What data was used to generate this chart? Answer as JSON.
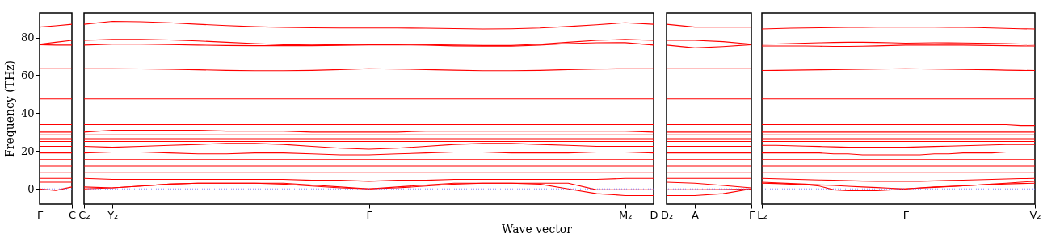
{
  "chart_data": [
    {
      "type": "line",
      "ylabel": "Frequency (THz)",
      "categories": [
        "Γ",
        null,
        "C"
      ],
      "ylim": [
        -8,
        93
      ],
      "yticks": [
        0,
        20,
        40,
        60,
        80
      ],
      "ref_lines": [
        {
          "axis": "y",
          "value": 0,
          "color": "#6666ff",
          "line_style": "dotted"
        }
      ],
      "series": [
        {
          "color": "#ff0000",
          "values": [
            85.5,
            86.2,
            87
          ]
        },
        {
          "color": "#ff0000",
          "values": [
            76.5,
            77.5,
            78.5
          ]
        },
        {
          "color": "#ff0000",
          "values": [
            76.2,
            76,
            76
          ]
        },
        {
          "color": "#ff0000",
          "values": [
            63.5,
            63.5,
            63.5
          ]
        },
        {
          "color": "#ff0000",
          "values": [
            47.5,
            47.5,
            47.5
          ]
        },
        {
          "color": "#ff0000",
          "values": [
            34,
            34,
            34
          ]
        },
        {
          "color": "#ff0000",
          "values": [
            30,
            30,
            30
          ]
        },
        {
          "color": "#ff0000",
          "values": [
            28.5,
            28.5,
            28.5
          ]
        },
        {
          "color": "#ff0000",
          "values": [
            26.5,
            26.5,
            26.5
          ]
        },
        {
          "color": "#ff0000",
          "values": [
            25,
            25,
            25
          ]
        },
        {
          "color": "#ff0000",
          "values": [
            22.5,
            22.5,
            22.5
          ]
        },
        {
          "color": "#ff0000",
          "values": [
            19,
            19,
            19
          ]
        },
        {
          "color": "#ff0000",
          "values": [
            15.5,
            15.5,
            15.5
          ]
        },
        {
          "color": "#ff0000",
          "values": [
            12,
            12,
            12
          ]
        },
        {
          "color": "#ff0000",
          "values": [
            8.5,
            8.5,
            8.5
          ]
        },
        {
          "color": "#ff0000",
          "values": [
            5.5,
            5.5,
            5.5
          ]
        },
        {
          "color": "#ff0000",
          "values": [
            3.5,
            3.5,
            3.5
          ]
        },
        {
          "color": "#ff0000",
          "values": [
            0,
            -0.8,
            1
          ]
        }
      ]
    },
    {
      "type": "line",
      "xlabel": "Wave vector",
      "categories": [
        "C₂",
        "Y₂",
        null,
        null,
        null,
        null,
        null,
        null,
        null,
        null,
        "Γ",
        null,
        null,
        null,
        null,
        null,
        null,
        null,
        null,
        "M₂",
        "D"
      ],
      "ylim": [
        -8,
        93
      ],
      "yticks": [
        0,
        20,
        40,
        60,
        80
      ],
      "tick_labels": "x",
      "ref_lines": [
        {
          "axis": "y",
          "value": 0,
          "color": "#6666ff",
          "line_style": "dotted"
        }
      ],
      "series": [
        {
          "color": "#ff0000",
          "values": [
            87,
            88.5,
            88.3,
            87.8,
            87,
            86.3,
            85.7,
            85.3,
            85.1,
            85,
            85,
            85,
            84.9,
            84.7,
            84.5,
            84.6,
            85,
            85.8,
            86.7,
            87.8,
            87
          ]
        },
        {
          "color": "#ff0000",
          "values": [
            78.5,
            79,
            79,
            78.7,
            78.2,
            77.5,
            76.8,
            76.2,
            76,
            76.2,
            76.5,
            76.5,
            76.3,
            76,
            75.8,
            75.8,
            76.5,
            77.5,
            78.5,
            79,
            78.5
          ]
        },
        {
          "color": "#ff0000",
          "values": [
            76,
            76.5,
            76.5,
            76.3,
            76,
            75.8,
            75.7,
            75.7,
            75.7,
            75.9,
            76.1,
            76.1,
            76,
            75.6,
            75.4,
            75.4,
            76,
            76.8,
            77.2,
            77.3,
            76
          ]
        },
        {
          "color": "#ff0000",
          "values": [
            63.5,
            63.5,
            63.4,
            63.2,
            62.9,
            62.6,
            62.4,
            62.4,
            62.6,
            63,
            63.5,
            63.3,
            63,
            62.7,
            62.4,
            62.4,
            62.6,
            63,
            63.3,
            63.5,
            63.5
          ]
        },
        {
          "color": "#ff0000",
          "values": [
            47.5,
            47.5,
            47.5,
            47.5,
            47.5,
            47.5,
            47.5,
            47.5,
            47.5,
            47.5,
            47.5,
            47.5,
            47.5,
            47.5,
            47.5,
            47.5,
            47.5,
            47.5,
            47.5,
            47.5,
            47.5
          ]
        },
        {
          "color": "#ff0000",
          "values": [
            34,
            34,
            34,
            34,
            34,
            34,
            34,
            34,
            34,
            34,
            34,
            34,
            34,
            34,
            34,
            34,
            34,
            34,
            34,
            34,
            34
          ]
        },
        {
          "color": "#ff0000",
          "values": [
            30,
            31,
            31,
            31,
            31,
            30.5,
            30.5,
            30.5,
            30,
            30,
            30,
            30,
            30.5,
            30.5,
            30.5,
            30.5,
            30.5,
            30.5,
            30.5,
            30.5,
            30
          ]
        },
        {
          "color": "#ff0000",
          "values": [
            28.5,
            28.5,
            28.5,
            28.5,
            28.5,
            28.5,
            28.5,
            28.5,
            28.5,
            28.5,
            28.5,
            28.5,
            28.5,
            28.5,
            28.5,
            28.5,
            28.5,
            28.5,
            28.5,
            28.5,
            28.5
          ]
        },
        {
          "color": "#ff0000",
          "values": [
            26.5,
            26.5,
            26.5,
            26.5,
            26.5,
            26.5,
            26.5,
            26.5,
            26.5,
            26.5,
            26.5,
            26.5,
            26.5,
            26.5,
            26.5,
            26.5,
            26.5,
            26.5,
            26.5,
            26.5,
            26.5
          ]
        },
        {
          "color": "#ff0000",
          "values": [
            25,
            25,
            25,
            25,
            25,
            25,
            25,
            25,
            25,
            25,
            25,
            25,
            25,
            25,
            25,
            25,
            25,
            25,
            25,
            25,
            25
          ]
        },
        {
          "color": "#ff0000",
          "values": [
            22.5,
            22,
            22.5,
            23,
            23.5,
            24,
            24,
            23.5,
            22.5,
            21.5,
            21,
            21.5,
            22.5,
            23.5,
            24,
            24,
            23.5,
            23,
            22.5,
            22.5,
            22.5
          ]
        },
        {
          "color": "#ff0000",
          "values": [
            19,
            19.5,
            19.5,
            19,
            18.5,
            18.5,
            19,
            19,
            18.5,
            18,
            18,
            18.5,
            19,
            19.5,
            19.5,
            19,
            19,
            19,
            19.5,
            19.5,
            19
          ]
        },
        {
          "color": "#ff0000",
          "values": [
            15.5,
            15.5,
            15.5,
            15.5,
            15.5,
            15.5,
            15.5,
            15.5,
            15.5,
            15.5,
            15.5,
            15.5,
            15.5,
            15.5,
            15.5,
            15.5,
            15.5,
            15.5,
            15.5,
            15.5,
            15.5
          ]
        },
        {
          "color": "#ff0000",
          "values": [
            12,
            12,
            12,
            12,
            12,
            12,
            12,
            12,
            12,
            12,
            12,
            12,
            12,
            12,
            12,
            12,
            12,
            12,
            12,
            12,
            12
          ]
        },
        {
          "color": "#ff0000",
          "values": [
            8.5,
            8.5,
            8.5,
            8.5,
            8.5,
            8.5,
            8.5,
            8.5,
            8.5,
            8.5,
            8.5,
            8.5,
            8.5,
            8.5,
            8.5,
            8.5,
            8.5,
            8.5,
            8.5,
            8.5,
            8.5
          ]
        },
        {
          "color": "#ff0000",
          "values": [
            5.5,
            5,
            5,
            5,
            5,
            5,
            5,
            5,
            4.5,
            4.5,
            4,
            4.5,
            4.5,
            5,
            5,
            5,
            5,
            5,
            5,
            5.5,
            5.5
          ]
        },
        {
          "color": "#ff0000",
          "values": [
            1,
            0.5,
            1.5,
            2.5,
            3,
            3,
            3,
            3,
            2,
            1,
            0,
            1,
            2,
            3,
            3,
            3,
            2.5,
            0,
            -2.5,
            -3.5,
            -3.5
          ]
        },
        {
          "color": "#ff0000",
          "values": [
            0,
            0.5,
            1.5,
            2.5,
            3,
            3,
            3,
            2.5,
            1.5,
            0.5,
            0,
            0.5,
            1.5,
            2.5,
            3,
            3,
            3,
            3,
            -0.5,
            -0.5,
            -0.5
          ]
        }
      ]
    },
    {
      "type": "line",
      "categories": [
        "D₂",
        "A",
        null,
        "Γ"
      ],
      "ylim": [
        -8,
        93
      ],
      "yticks": [
        0,
        20,
        40,
        60,
        80
      ],
      "tick_labels": "x",
      "ref_lines": [
        {
          "axis": "y",
          "value": 0,
          "color": "#6666ff",
          "line_style": "dotted"
        }
      ],
      "series": [
        {
          "color": "#ff0000",
          "values": [
            87,
            85.5,
            85.5,
            85.5
          ]
        },
        {
          "color": "#ff0000",
          "values": [
            78.5,
            78.5,
            77.8,
            76.5
          ]
        },
        {
          "color": "#ff0000",
          "values": [
            76,
            74.5,
            75.2,
            76.2
          ]
        },
        {
          "color": "#ff0000",
          "values": [
            63.5,
            63.5,
            63.5,
            63.5
          ]
        },
        {
          "color": "#ff0000",
          "values": [
            47.5,
            47.5,
            47.5,
            47.5
          ]
        },
        {
          "color": "#ff0000",
          "values": [
            34,
            34,
            34,
            34
          ]
        },
        {
          "color": "#ff0000",
          "values": [
            30,
            30,
            30,
            30
          ]
        },
        {
          "color": "#ff0000",
          "values": [
            28.5,
            28.5,
            28.5,
            28.5
          ]
        },
        {
          "color": "#ff0000",
          "values": [
            26.5,
            26.5,
            26.5,
            26.5
          ]
        },
        {
          "color": "#ff0000",
          "values": [
            25,
            25,
            25,
            25
          ]
        },
        {
          "color": "#ff0000",
          "values": [
            22.5,
            22.5,
            22.5,
            22.5
          ]
        },
        {
          "color": "#ff0000",
          "values": [
            19,
            19,
            19,
            19
          ]
        },
        {
          "color": "#ff0000",
          "values": [
            15.5,
            15.5,
            15.5,
            15.5
          ]
        },
        {
          "color": "#ff0000",
          "values": [
            12,
            12,
            12,
            12
          ]
        },
        {
          "color": "#ff0000",
          "values": [
            8.5,
            8.5,
            8.5,
            8.5
          ]
        },
        {
          "color": "#ff0000",
          "values": [
            5.5,
            5.5,
            5.5,
            5.5
          ]
        },
        {
          "color": "#ff0000",
          "values": [
            3.5,
            3,
            1.8,
            0.5
          ]
        },
        {
          "color": "#ff0000",
          "values": [
            -0.5,
            -0.5,
            -0.3,
            0
          ]
        },
        {
          "color": "#ff0000",
          "values": [
            -3.5,
            -3.5,
            -2.5,
            0
          ]
        }
      ]
    },
    {
      "type": "line",
      "categories": [
        "L₂",
        null,
        null,
        null,
        null,
        null,
        null,
        null,
        null,
        null,
        "Γ",
        null,
        null,
        null,
        null,
        null,
        null,
        null,
        null,
        "V₂"
      ],
      "ylim": [
        -8,
        93
      ],
      "yticks": [
        0,
        20,
        40,
        60,
        80
      ],
      "tick_labels": "x",
      "ref_lines": [
        {
          "axis": "y",
          "value": 0,
          "color": "#6666ff",
          "line_style": "dotted"
        }
      ],
      "series": [
        {
          "color": "#ff0000",
          "values": [
            84.5,
            84.7,
            84.9,
            85,
            85.1,
            85.2,
            85.3,
            85.4,
            85.5,
            85.5,
            85.5,
            85.5,
            85.5,
            85.4,
            85.3,
            85.2,
            85,
            84.8,
            84.6,
            84.5
          ]
        },
        {
          "color": "#ff0000",
          "values": [
            76.5,
            76.6,
            76.8,
            77,
            77.2,
            77.4,
            77.5,
            77.5,
            77.4,
            77.2,
            77,
            77.1,
            77.2,
            77.2,
            77.1,
            77,
            76.9,
            76.8,
            76.6,
            76.5
          ]
        },
        {
          "color": "#ff0000",
          "values": [
            75.5,
            75.5,
            75.5,
            75.5,
            75.4,
            75.3,
            75.3,
            75.4,
            75.6,
            75.8,
            76,
            76,
            76,
            76,
            76,
            75.9,
            75.8,
            75.7,
            75.6,
            75.5
          ]
        },
        {
          "color": "#ff0000",
          "values": [
            62.5,
            62.6,
            62.7,
            62.8,
            62.9,
            63,
            63.1,
            63.2,
            63.3,
            63.4,
            63.5,
            63.4,
            63.3,
            63.2,
            63.1,
            63,
            62.9,
            62.7,
            62.6,
            62.5
          ]
        },
        {
          "color": "#ff0000",
          "values": [
            47.5,
            47.5,
            47.5,
            47.5,
            47.5,
            47.5,
            47.5,
            47.5,
            47.5,
            47.5,
            47.5,
            47.5,
            47.5,
            47.5,
            47.5,
            47.5,
            47.5,
            47.5,
            47.5,
            47.5
          ]
        },
        {
          "color": "#ff0000",
          "values": [
            34,
            34,
            34,
            34,
            34,
            34,
            34,
            34,
            34,
            34,
            34,
            34,
            34,
            34,
            34,
            34,
            34,
            34,
            33.5,
            33.5
          ]
        },
        {
          "color": "#ff0000",
          "values": [
            30,
            30,
            30,
            30,
            30,
            30,
            30,
            30,
            30,
            30,
            30,
            30,
            30,
            30,
            30,
            30,
            30,
            30,
            30,
            30
          ]
        },
        {
          "color": "#ff0000",
          "values": [
            28.5,
            28.5,
            28.5,
            28.5,
            28.5,
            28.5,
            28.5,
            28.5,
            28.5,
            28.5,
            28.5,
            28.5,
            28.5,
            28.5,
            28.5,
            28.5,
            28.5,
            28.5,
            28.5,
            28.5
          ]
        },
        {
          "color": "#ff0000",
          "values": [
            26.5,
            26.5,
            26.5,
            26.5,
            26.5,
            26.5,
            26.5,
            26.5,
            26.5,
            26.5,
            26.5,
            26.5,
            26.5,
            26.5,
            26.5,
            26.5,
            26.5,
            26.5,
            26.5,
            26.5
          ]
        },
        {
          "color": "#ff0000",
          "values": [
            25,
            25,
            25,
            25,
            25,
            25,
            25,
            25,
            25,
            25,
            25,
            25,
            25,
            25,
            25,
            25,
            25,
            25,
            25,
            25
          ]
        },
        {
          "color": "#ff0000",
          "values": [
            23,
            23,
            22.8,
            22.6,
            22.4,
            22.2,
            22,
            22,
            22,
            22,
            22,
            22.2,
            22.4,
            22.6,
            22.8,
            23,
            23.2,
            23.4,
            23.5,
            23.5
          ]
        },
        {
          "color": "#ff0000",
          "values": [
            19,
            19,
            19,
            19,
            19,
            18.5,
            18.5,
            18,
            18,
            18,
            18,
            18,
            18.5,
            18.5,
            19,
            19,
            19,
            19.5,
            19.5,
            19.5
          ]
        },
        {
          "color": "#ff0000",
          "values": [
            15.5,
            15.5,
            15.5,
            15.5,
            15.5,
            15.5,
            15.5,
            15.5,
            15.5,
            15.5,
            15.5,
            15.5,
            15.5,
            15.5,
            15.5,
            15.5,
            15.5,
            15.5,
            15.5,
            15.5
          ]
        },
        {
          "color": "#ff0000",
          "values": [
            12,
            12,
            12,
            12,
            12,
            12,
            12,
            12,
            12,
            12,
            12,
            12,
            12,
            12,
            12,
            12,
            12,
            12,
            12,
            12
          ]
        },
        {
          "color": "#ff0000",
          "values": [
            8.5,
            8.5,
            8.5,
            8.5,
            8.5,
            8.5,
            8.5,
            8.5,
            8.5,
            8.5,
            8.5,
            8.5,
            8.5,
            8.5,
            8.5,
            8.5,
            8.5,
            8.5,
            8.5,
            8.5
          ]
        },
        {
          "color": "#ff0000",
          "values": [
            5.5,
            5.3,
            5.1,
            4.9,
            4.7,
            4.5,
            4.3,
            4.1,
            4,
            4,
            4,
            4,
            4.2,
            4.4,
            4.6,
            4.8,
            5,
            5.2,
            5.4,
            5.5
          ]
        },
        {
          "color": "#ff0000",
          "values": [
            3,
            2.8,
            2.5,
            2.2,
            1.5,
            -0.5,
            -1,
            -1,
            -1,
            -0.5,
            0,
            0.5,
            1,
            1.3,
            1.6,
            2,
            2.3,
            2.6,
            2.8,
            3
          ]
        },
        {
          "color": "#ff0000",
          "values": [
            3.5,
            3.2,
            2.8,
            2.5,
            2.1,
            1.8,
            1.4,
            1,
            0.7,
            0.3,
            0,
            0.4,
            0.8,
            1.2,
            1.6,
            2,
            2.5,
            3,
            3.5,
            4
          ]
        }
      ]
    }
  ]
}
